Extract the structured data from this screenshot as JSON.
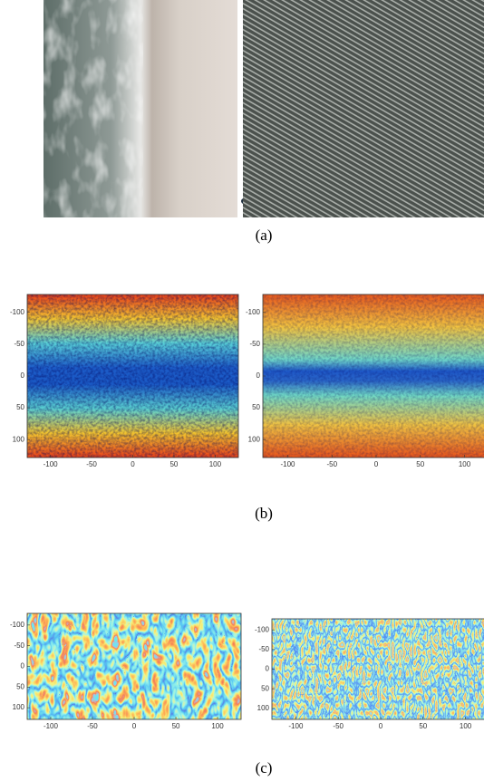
{
  "figure": {
    "panels": [
      {
        "caption": "(a)"
      },
      {
        "caption": "(b)",
        "plots": [
          {
            "yticks": [
              -100,
              -50,
              0,
              50,
              100
            ],
            "xticks": [
              -100,
              -50,
              0,
              50,
              100
            ]
          },
          {
            "yticks": [
              -100,
              -50,
              0,
              50,
              100
            ],
            "xticks": [
              -100,
              -50,
              0,
              50,
              100
            ]
          }
        ]
      },
      {
        "caption": "(c)",
        "plots": [
          {
            "yticks": [
              -100,
              -50,
              0,
              50,
              100
            ],
            "xticks": [
              -100,
              -50,
              0,
              50,
              100
            ]
          },
          {
            "yticks": [
              -100,
              -50,
              0,
              50,
              100
            ],
            "xticks": [
              -100,
              -50,
              0,
              50,
              100
            ]
          }
        ]
      }
    ]
  }
}
